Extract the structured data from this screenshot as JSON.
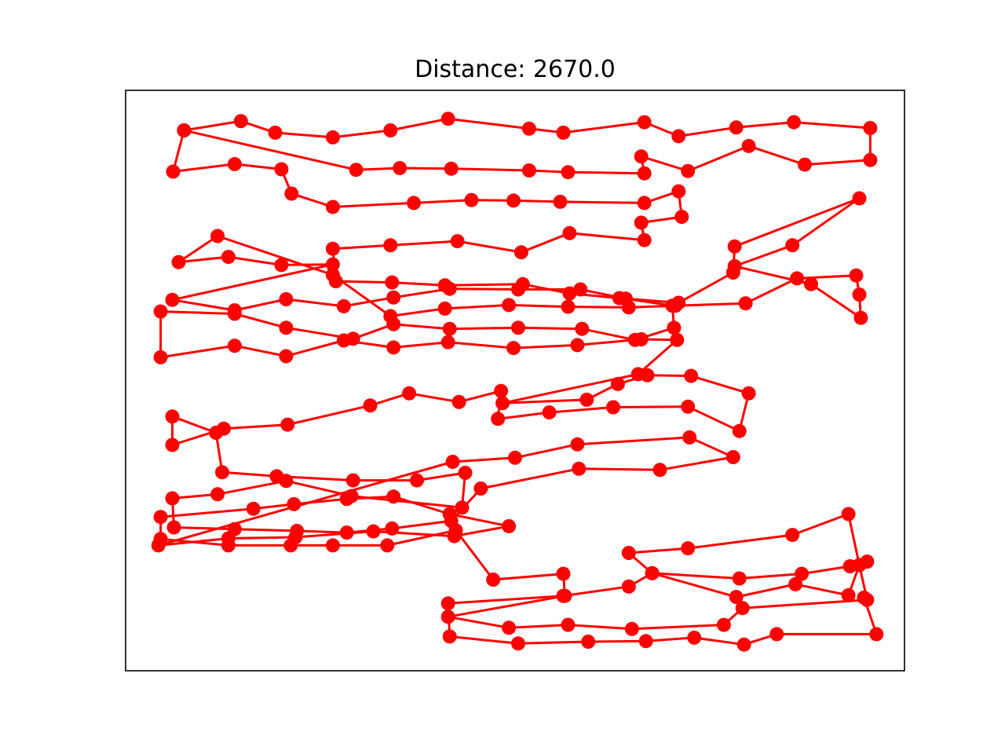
{
  "chart_data": {
    "type": "line",
    "title": "Distance: 2670.0",
    "xlabel": "",
    "ylabel": "",
    "xlim": [
      0,
      1000
    ],
    "ylim": [
      0,
      1000
    ],
    "axes_visible": false,
    "grid": false,
    "legend": "none",
    "series": [
      {
        "color": "#ff0000",
        "marker": "circle",
        "closed": false,
        "points": [
          [
            75,
            931
          ],
          [
            148,
            947
          ],
          [
            192,
            927
          ],
          [
            266,
            919
          ],
          [
            340,
            931
          ],
          [
            414,
            951
          ],
          [
            518,
            934
          ],
          [
            562,
            927
          ],
          [
            666,
            945
          ],
          [
            710,
            921
          ],
          [
            784,
            936
          ],
          [
            858,
            945
          ],
          [
            956,
            935
          ],
          [
            956,
            880
          ],
          [
            872,
            872
          ],
          [
            800,
            904
          ],
          [
            722,
            861
          ],
          [
            662,
            886
          ],
          [
            666,
            857
          ],
          [
            568,
            859
          ],
          [
            518,
            862
          ],
          [
            418,
            865
          ],
          [
            352,
            866
          ],
          [
            296,
            863
          ],
          [
            75,
            931
          ],
          [
            61,
            860
          ],
          [
            140,
            873
          ],
          [
            200,
            864
          ],
          [
            213,
            822
          ],
          [
            266,
            799
          ],
          [
            370,
            806
          ],
          [
            444,
            811
          ],
          [
            498,
            810
          ],
          [
            558,
            808
          ],
          [
            666,
            806
          ],
          [
            710,
            826
          ],
          [
            714,
            782
          ],
          [
            662,
            772
          ],
          [
            666,
            742
          ],
          [
            570,
            754
          ],
          [
            508,
            721
          ],
          [
            426,
            740
          ],
          [
            340,
            733
          ],
          [
            266,
            727
          ],
          [
            270,
            671
          ],
          [
            342,
            669
          ],
          [
            410,
            664
          ],
          [
            510,
            666
          ],
          [
            570,
            650
          ],
          [
            634,
            642
          ],
          [
            710,
            634
          ],
          [
            780,
            686
          ],
          [
            782,
            731
          ],
          [
            942,
            814
          ],
          [
            856,
            733
          ],
          [
            782,
            697
          ],
          [
            880,
            666
          ],
          [
            944,
            608
          ],
          [
            942,
            648
          ],
          [
            938,
            681
          ],
          [
            862,
            676
          ],
          [
            796,
            633
          ],
          [
            706,
            629
          ],
          [
            646,
            626
          ],
          [
            568,
            627
          ],
          [
            492,
            630
          ],
          [
            410,
            624
          ],
          [
            340,
            611
          ],
          [
            266,
            682
          ],
          [
            118,
            749
          ],
          [
            68,
            704
          ],
          [
            132,
            713
          ],
          [
            200,
            699
          ],
          [
            266,
            700
          ],
          [
            60,
            639
          ],
          [
            140,
            621
          ],
          [
            206,
            640
          ],
          [
            280,
            628
          ],
          [
            344,
            643
          ],
          [
            416,
            658
          ],
          [
            504,
            657
          ],
          [
            584,
            657
          ],
          [
            642,
            641
          ],
          [
            702,
            629
          ],
          [
            704,
            591
          ],
          [
            654,
            570
          ],
          [
            586,
            589
          ],
          [
            504,
            591
          ],
          [
            416,
            589
          ],
          [
            344,
            597
          ],
          [
            292,
            572
          ],
          [
            206,
            591
          ],
          [
            140,
            615
          ],
          [
            45,
            619
          ],
          [
            45,
            540
          ],
          [
            140,
            560
          ],
          [
            206,
            542
          ],
          [
            280,
            569
          ],
          [
            344,
            557
          ],
          [
            414,
            566
          ],
          [
            498,
            556
          ],
          [
            580,
            561
          ],
          [
            662,
            571
          ],
          [
            708,
            570
          ],
          [
            658,
            511
          ],
          [
            484,
            461
          ],
          [
            592,
            467
          ],
          [
            632,
            494
          ],
          [
            670,
            509
          ],
          [
            726,
            508
          ],
          [
            800,
            478
          ],
          [
            788,
            413
          ],
          [
            722,
            455
          ],
          [
            626,
            454
          ],
          [
            544,
            445
          ],
          [
            478,
            434
          ],
          [
            482,
            482
          ],
          [
            428,
            463
          ],
          [
            364,
            478
          ],
          [
            314,
            457
          ],
          [
            208,
            424
          ],
          [
            126,
            417
          ],
          [
            60,
            389
          ],
          [
            60,
            438
          ],
          [
            116,
            410
          ],
          [
            124,
            342
          ],
          [
            194,
            335
          ],
          [
            292,
            328
          ],
          [
            374,
            328
          ],
          [
            436,
            341
          ],
          [
            432,
            281
          ],
          [
            290,
            301
          ],
          [
            206,
            327
          ],
          [
            118,
            304
          ],
          [
            60,
            297
          ],
          [
            62,
            247
          ],
          [
            140,
            244
          ],
          [
            220,
            241
          ],
          [
            284,
            238
          ],
          [
            342,
            245
          ],
          [
            418,
            258
          ],
          [
            456,
            314
          ],
          [
            582,
            348
          ],
          [
            686,
            346
          ],
          [
            780,
            368
          ],
          [
            724,
            402
          ],
          [
            580,
            390
          ],
          [
            500,
            367
          ],
          [
            420,
            360
          ],
          [
            42,
            216
          ],
          [
            132,
            228
          ],
          [
            218,
            230
          ],
          [
            318,
            240
          ],
          [
            422,
            232
          ],
          [
            492,
            249
          ],
          [
            416,
            270
          ],
          [
            344,
            300
          ],
          [
            284,
            296
          ],
          [
            216,
            287
          ],
          [
            164,
            279
          ],
          [
            45,
            265
          ],
          [
            45,
            227
          ],
          [
            132,
            216
          ],
          [
            212,
            216
          ],
          [
            266,
            216
          ],
          [
            336,
            216
          ],
          [
            424,
            242
          ],
          [
            472,
            157
          ],
          [
            562,
            167
          ],
          [
            564,
            129
          ],
          [
            414,
            93
          ],
          [
            492,
            74
          ],
          [
            568,
            79
          ],
          [
            650,
            72
          ],
          [
            768,
            79
          ],
          [
            792,
            108
          ],
          [
            952,
            122
          ],
          [
            942,
            182
          ],
          [
            928,
            130
          ],
          [
            860,
            149
          ],
          [
            784,
            127
          ],
          [
            676,
            168
          ],
          [
            646,
            203
          ],
          [
            722,
            211
          ],
          [
            856,
            234
          ],
          [
            928,
            270
          ],
          [
            942,
            182
          ],
          [
            952,
            188
          ],
          [
            930,
            180
          ],
          [
            868,
            167
          ],
          [
            788,
            159
          ],
          [
            676,
            168
          ],
          [
            646,
            145
          ],
          [
            562,
            129
          ],
          [
            414,
            116
          ],
          [
            416,
            59
          ],
          [
            504,
            47
          ],
          [
            594,
            50
          ],
          [
            668,
            51
          ],
          [
            730,
            57
          ],
          [
            794,
            45
          ],
          [
            836,
            63
          ],
          [
            964,
            63
          ],
          [
            948,
            126
          ]
        ]
      }
    ]
  }
}
